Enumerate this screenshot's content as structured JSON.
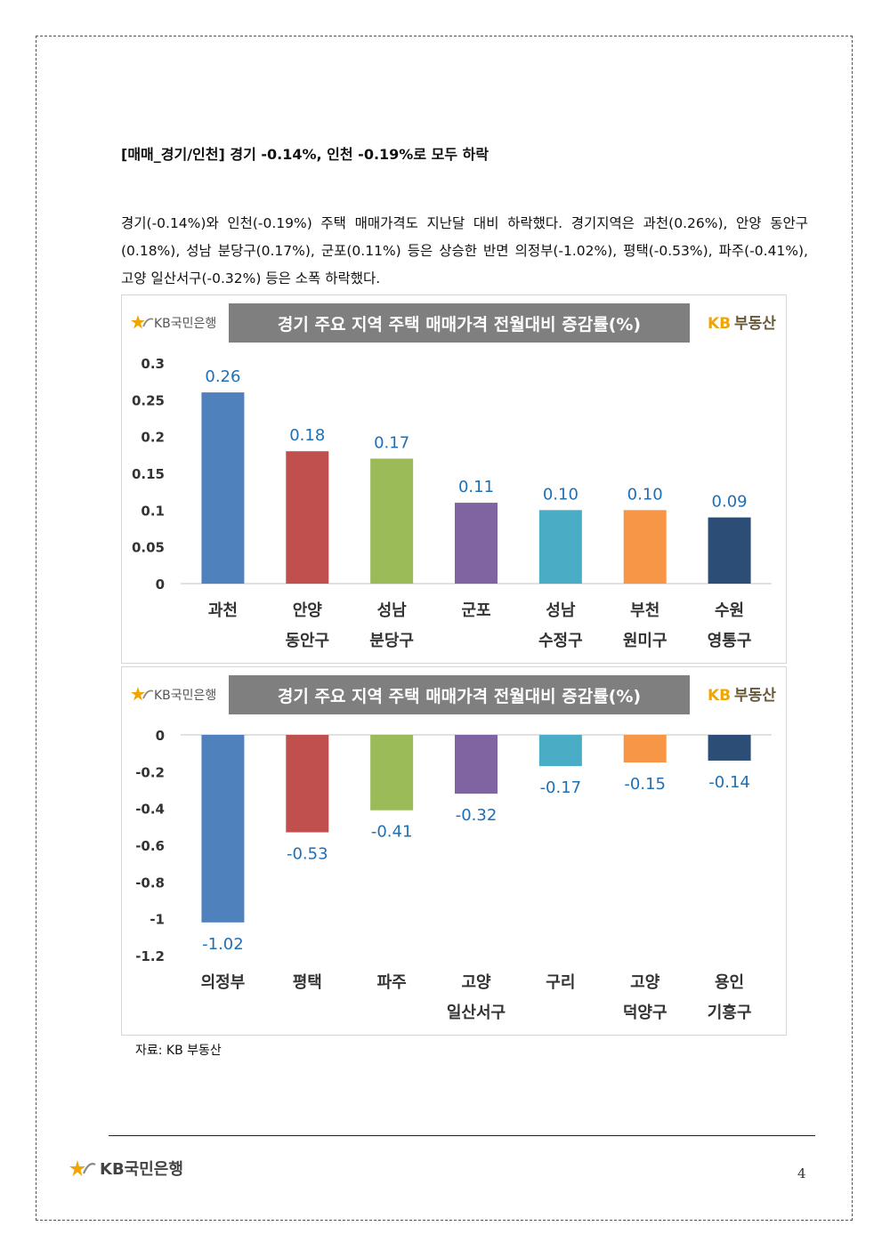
{
  "heading": "[매매_경기/인천] 경기 -0.14%, 인천 -0.19%로 모두 하락",
  "paragraph": "경기(-0.14%)와 인천(-0.19%) 주택 매매가격도 지난달 대비 하락했다. 경기지역은 과천(0.26%), 안양 동안구(0.18%), 성남 분당구(0.17%), 군포(0.11%) 등은 상승한 반면 의정부(-1.02%), 평택(-0.53%), 파주(-0.41%), 고양 일산서구(-0.32%) 등은 소폭 하락했다.",
  "logos": {
    "bank": "KB국민은행",
    "realestate_kb": "KB",
    "realestate_name": "부동산"
  },
  "colors": {
    "blue": "#4f81bd",
    "red": "#c0504d",
    "green": "#9bbb59",
    "purple": "#8064a2",
    "teal": "#4bacc6",
    "orange": "#f79646",
    "navy": "#2c4d75",
    "label": "#1f6fb5",
    "title_bg": "#7f7f7f",
    "kb_yellow": "#f0a500"
  },
  "chart_data": [
    {
      "type": "bar",
      "title": "경기 주요 지역 주택 매매가격 전월대비 증감률(%)",
      "categories": [
        [
          "과천"
        ],
        [
          "안양",
          "동안구"
        ],
        [
          "성남",
          "분당구"
        ],
        [
          "군포"
        ],
        [
          "성남",
          "수정구"
        ],
        [
          "부천",
          "원미구"
        ],
        [
          "수원",
          "영통구"
        ]
      ],
      "values": [
        0.26,
        0.18,
        0.17,
        0.11,
        0.1,
        0.1,
        0.09
      ],
      "value_labels": [
        "0.26",
        "0.18",
        "0.17",
        "0.11",
        "0.10",
        "0.10",
        "0.09"
      ],
      "yticks": [
        "0.3",
        "0.25",
        "0.2",
        "0.15",
        "0.1",
        "0.05",
        "0"
      ],
      "ylim": [
        0,
        0.3
      ],
      "colors": [
        "#4f81bd",
        "#c0504d",
        "#9bbb59",
        "#8064a2",
        "#4bacc6",
        "#f79646",
        "#2c4d75"
      ]
    },
    {
      "type": "bar",
      "title": "경기 주요 지역 주택 매매가격 전월대비 증감률(%)",
      "categories": [
        [
          "의정부"
        ],
        [
          "평택"
        ],
        [
          "파주"
        ],
        [
          "고양",
          "일산서구"
        ],
        [
          "구리"
        ],
        [
          "고양",
          "덕양구"
        ],
        [
          "용인",
          "기흥구"
        ]
      ],
      "values": [
        -1.02,
        -0.53,
        -0.41,
        -0.32,
        -0.17,
        -0.15,
        -0.14
      ],
      "value_labels": [
        "-1.02",
        "-0.53",
        "-0.41",
        "-0.32",
        "-0.17",
        "-0.15",
        "-0.14"
      ],
      "yticks": [
        "0",
        "-0.2",
        "-0.4",
        "-0.6",
        "-0.8",
        "-1",
        "-1.2"
      ],
      "ylim": [
        -1.2,
        0
      ],
      "colors": [
        "#4f81bd",
        "#c0504d",
        "#9bbb59",
        "#8064a2",
        "#4bacc6",
        "#f79646",
        "#2c4d75"
      ]
    }
  ],
  "source": "자료: KB 부동산",
  "page_number": "4"
}
